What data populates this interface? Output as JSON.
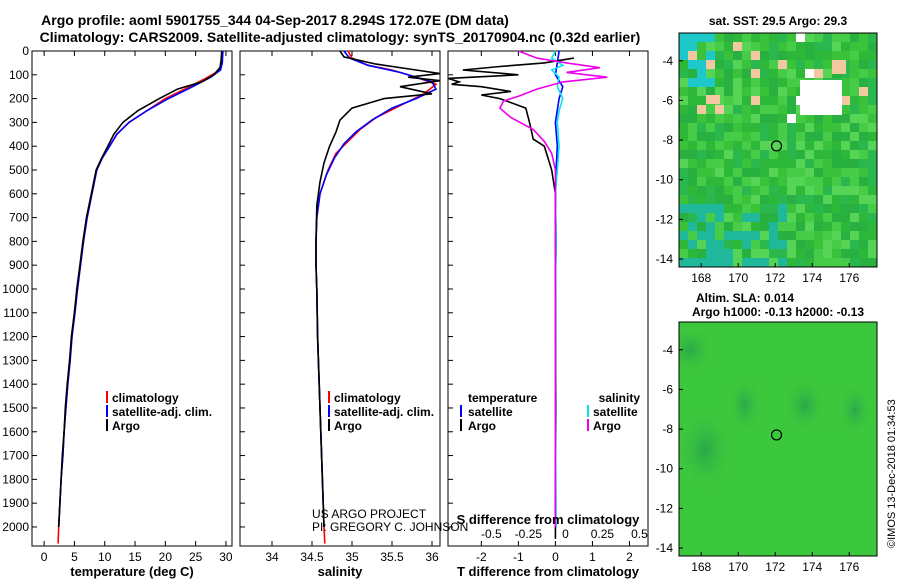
{
  "header": {
    "title_line1": "Argo profile: aoml 5901755_344 04-Sep-2017 8.294S 172.07E (DM data)",
    "title_line2": "Climatology: CARS2009. Satellite-adjusted climatology: synTS_20170904.nc (0.32d earlier)"
  },
  "credits": {
    "project": "US ARGO PROJECT",
    "pi": "PI: GREGORY C. JOHNSON",
    "stamp": "©IMOS 13-Dec-2018 01:34:53"
  },
  "colors": {
    "climatology": "#ff0000",
    "satellite": "#0000ff",
    "argo": "#000000",
    "cyan": "#00e5ee",
    "magenta": "#ee00ee"
  },
  "chart_data": [
    {
      "id": "temperature",
      "type": "line",
      "xlabel": "temperature (deg C)",
      "ylabel": "",
      "xlim": [
        -2,
        31
      ],
      "ylim": [
        2080,
        0
      ],
      "xticks": [
        0,
        5,
        10,
        15,
        20,
        25,
        30
      ],
      "yticks": [
        0,
        100,
        200,
        300,
        400,
        500,
        600,
        700,
        800,
        900,
        1000,
        1100,
        1200,
        1300,
        1400,
        1500,
        1600,
        1700,
        1800,
        1900,
        2000
      ],
      "legend": [
        "climatology",
        "satellite-adj. clim.",
        "Argo"
      ],
      "series": [
        {
          "name": "climatology",
          "color": "#ff0000",
          "points": [
            [
              29.4,
              0
            ],
            [
              29.3,
              50
            ],
            [
              29,
              80
            ],
            [
              27,
              110
            ],
            [
              24,
              150
            ],
            [
              20,
              200
            ],
            [
              17,
              250
            ],
            [
              14,
              300
            ],
            [
              12,
              350
            ],
            [
              10.8,
              400
            ],
            [
              9.5,
              450
            ],
            [
              8.6,
              500
            ],
            [
              7.8,
              600
            ],
            [
              7,
              700
            ],
            [
              6.5,
              800
            ],
            [
              6,
              900
            ],
            [
              5.5,
              1000
            ],
            [
              5,
              1100
            ],
            [
              4.6,
              1200
            ],
            [
              4.2,
              1300
            ],
            [
              3.9,
              1400
            ],
            [
              3.6,
              1500
            ],
            [
              3.3,
              1600
            ],
            [
              3.1,
              1700
            ],
            [
              2.8,
              1800
            ],
            [
              2.6,
              1900
            ],
            [
              2.4,
              2000
            ],
            [
              2.3,
              2070
            ]
          ]
        },
        {
          "name": "satellite-adj. clim.",
          "color": "#0000ff",
          "points": [
            [
              29.5,
              0
            ],
            [
              29.4,
              50
            ],
            [
              29.1,
              80
            ],
            [
              27.5,
              110
            ],
            [
              24.5,
              150
            ],
            [
              20.5,
              200
            ],
            [
              17,
              250
            ],
            [
              14,
              300
            ],
            [
              12,
              350
            ],
            [
              10.8,
              400
            ],
            [
              9.6,
              450
            ],
            [
              8.7,
              500
            ],
            [
              7.9,
              600
            ],
            [
              7.1,
              700
            ],
            [
              6.5,
              800
            ],
            [
              6,
              900
            ],
            [
              5.5,
              1000
            ],
            [
              5.1,
              1100
            ],
            [
              4.6,
              1200
            ],
            [
              4.3,
              1300
            ],
            [
              3.9,
              1400
            ],
            [
              3.6,
              1500
            ],
            [
              3.3,
              1600
            ],
            [
              3.1,
              1700
            ],
            [
              2.8,
              1800
            ],
            [
              2.6,
              1900
            ],
            [
              2.4,
              2000
            ]
          ]
        },
        {
          "name": "Argo",
          "color": "#000000",
          "points": [
            [
              29.3,
              0
            ],
            [
              29.2,
              40
            ],
            [
              29,
              70
            ],
            [
              28,
              100
            ],
            [
              26,
              130
            ],
            [
              22,
              160
            ],
            [
              19,
              200
            ],
            [
              15.5,
              250
            ],
            [
              13,
              300
            ],
            [
              11.5,
              350
            ],
            [
              10.5,
              400
            ],
            [
              9.5,
              450
            ],
            [
              8.6,
              500
            ],
            [
              7.8,
              600
            ],
            [
              7,
              700
            ],
            [
              6.4,
              800
            ],
            [
              5.9,
              900
            ],
            [
              5.4,
              1000
            ],
            [
              5,
              1100
            ],
            [
              4.5,
              1200
            ],
            [
              4.2,
              1300
            ],
            [
              3.8,
              1400
            ],
            [
              3.5,
              1500
            ],
            [
              3.3,
              1600
            ],
            [
              3,
              1700
            ],
            [
              2.8,
              1800
            ],
            [
              2.6,
              1900
            ],
            [
              2.4,
              2000
            ]
          ]
        }
      ]
    },
    {
      "id": "salinity",
      "type": "line",
      "xlabel": "salinity",
      "xlim": [
        33.6,
        36.1
      ],
      "ylim": [
        2080,
        0
      ],
      "xticks": [
        34,
        34.5,
        35,
        35.5,
        36
      ],
      "legend": [
        "climatology",
        "satellite-adj. clim.",
        "Argo"
      ],
      "series": [
        {
          "name": "climatology",
          "color": "#ff0000",
          "points": [
            [
              34.95,
              0
            ],
            [
              35,
              30
            ],
            [
              35.2,
              60
            ],
            [
              35.5,
              80
            ],
            [
              35.8,
              110
            ],
            [
              36.05,
              140
            ],
            [
              35.9,
              180
            ],
            [
              35.6,
              230
            ],
            [
              35.3,
              280
            ],
            [
              35.1,
              330
            ],
            [
              34.95,
              380
            ],
            [
              34.8,
              430
            ],
            [
              34.7,
              500
            ],
            [
              34.6,
              600
            ],
            [
              34.56,
              700
            ],
            [
              34.55,
              800
            ],
            [
              34.55,
              900
            ],
            [
              34.56,
              1000
            ],
            [
              34.57,
              1200
            ],
            [
              34.59,
              1400
            ],
            [
              34.61,
              1600
            ],
            [
              34.63,
              1800
            ],
            [
              34.65,
              2000
            ],
            [
              34.66,
              2070
            ]
          ]
        },
        {
          "name": "satellite-adj. clim.",
          "color": "#0000ff",
          "points": [
            [
              34.9,
              0
            ],
            [
              34.97,
              30
            ],
            [
              35.2,
              60
            ],
            [
              35.6,
              90
            ],
            [
              36,
              130
            ],
            [
              36.05,
              160
            ],
            [
              35.8,
              200
            ],
            [
              35.5,
              240
            ],
            [
              35.25,
              290
            ],
            [
              35.05,
              340
            ],
            [
              34.9,
              390
            ],
            [
              34.78,
              450
            ],
            [
              34.68,
              520
            ],
            [
              34.6,
              600
            ],
            [
              34.56,
              700
            ],
            [
              34.55,
              800
            ],
            [
              34.55,
              900
            ],
            [
              34.56,
              1000
            ],
            [
              34.57,
              1200
            ],
            [
              34.59,
              1400
            ],
            [
              34.61,
              1600
            ],
            [
              34.63,
              1800
            ],
            [
              34.65,
              2000
            ]
          ]
        },
        {
          "name": "Argo",
          "color": "#000000",
          "points": [
            [
              34.85,
              0
            ],
            [
              34.9,
              25
            ],
            [
              35.3,
              55
            ],
            [
              35.8,
              80
            ],
            [
              36.1,
              95
            ],
            [
              35.7,
              110
            ],
            [
              36.1,
              125
            ],
            [
              35.6,
              150
            ],
            [
              36,
              180
            ],
            [
              35.4,
              200
            ],
            [
              35,
              240
            ],
            [
              34.85,
              290
            ],
            [
              34.8,
              340
            ],
            [
              34.72,
              400
            ],
            [
              34.65,
              470
            ],
            [
              34.6,
              550
            ],
            [
              34.56,
              650
            ],
            [
              34.55,
              800
            ],
            [
              34.55,
              900
            ],
            [
              34.56,
              1000
            ],
            [
              34.57,
              1200
            ],
            [
              34.59,
              1400
            ],
            [
              34.61,
              1600
            ],
            [
              34.63,
              1800
            ],
            [
              34.65,
              2000
            ]
          ]
        }
      ]
    },
    {
      "id": "differences",
      "type": "line",
      "xlabel": "T difference from climatology",
      "xlabel_top": "S difference from climatology",
      "xlim": [
        -2.9,
        2.5
      ],
      "ylim": [
        2080,
        0
      ],
      "xticks": [
        -2,
        -1,
        0,
        1,
        2
      ],
      "xticks_s": [
        "-0.5",
        "-0.25",
        "0",
        "0.25",
        "0.5"
      ],
      "xticks_s_pos": [
        -2,
        -1,
        0,
        1,
        2
      ],
      "legend_left": {
        "title": "temperature",
        "items": [
          "satellite",
          "Argo"
        ]
      },
      "legend_right": {
        "title": "salinity",
        "items": [
          "satellite",
          "Argo"
        ]
      },
      "series": [
        {
          "name": "temperature satellite",
          "color": "#0000ff",
          "points": [
            [
              0.1,
              0
            ],
            [
              0.05,
              50
            ],
            [
              0,
              100
            ],
            [
              0.2,
              150
            ],
            [
              0.1,
              200
            ],
            [
              0,
              300
            ],
            [
              0.05,
              400
            ],
            [
              0.02,
              500
            ],
            [
              0,
              600
            ],
            [
              0.02,
              800
            ],
            [
              0,
              1000
            ],
            [
              0.01,
              1500
            ],
            [
              0,
              2000
            ]
          ]
        },
        {
          "name": "temperature Argo",
          "color": "#000000",
          "points": [
            [
              0.5,
              30
            ],
            [
              -0.3,
              50
            ],
            [
              -1.5,
              65
            ],
            [
              -2.5,
              80
            ],
            [
              -1,
              100
            ],
            [
              -2.9,
              115
            ],
            [
              -2.6,
              130
            ],
            [
              -2.8,
              140
            ],
            [
              -2,
              150
            ],
            [
              -1.2,
              170
            ],
            [
              -2,
              185
            ],
            [
              -1.5,
              200
            ],
            [
              -0.8,
              240
            ],
            [
              -0.7,
              300
            ],
            [
              -0.6,
              370
            ],
            [
              -0.3,
              400
            ],
            [
              -0.2,
              450
            ],
            [
              -0.1,
              500
            ],
            [
              0,
              600
            ],
            [
              0,
              1000
            ],
            [
              0.01,
              1500
            ],
            [
              0,
              2050
            ]
          ]
        },
        {
          "name": "salinity satellite",
          "color": "#00e5ee",
          "points": [
            [
              0,
              0
            ],
            [
              -0.1,
              30
            ],
            [
              0.2,
              60
            ],
            [
              -0.1,
              80
            ],
            [
              0.1,
              110
            ],
            [
              0.05,
              150
            ],
            [
              0.2,
              200
            ],
            [
              0.1,
              250
            ],
            [
              0.05,
              300
            ],
            [
              0.1,
              400
            ],
            [
              0.05,
              500
            ],
            [
              0,
              600
            ],
            [
              0.02,
              800
            ],
            [
              0,
              1000
            ],
            [
              0,
              1500
            ],
            [
              0.02,
              2000
            ]
          ]
        },
        {
          "name": "salinity Argo",
          "color": "#ee00ee",
          "points": [
            [
              -1,
              0
            ],
            [
              -0.5,
              30
            ],
            [
              0.3,
              50
            ],
            [
              1.2,
              70
            ],
            [
              0.3,
              90
            ],
            [
              1.4,
              110
            ],
            [
              0.2,
              130
            ],
            [
              -0.5,
              160
            ],
            [
              -1,
              190
            ],
            [
              -1.4,
              210
            ],
            [
              -1.5,
              240
            ],
            [
              -1.2,
              280
            ],
            [
              -0.6,
              330
            ],
            [
              -0.3,
              380
            ],
            [
              -0.1,
              430
            ],
            [
              0,
              500
            ],
            [
              0,
              600
            ],
            [
              0,
              1000
            ],
            [
              0,
              1500
            ],
            [
              0,
              2000
            ]
          ]
        }
      ]
    }
  ],
  "maps": [
    {
      "id": "sst-map",
      "title": "sat. SST: 29.5 Argo: 29.3",
      "xticks": [
        "168",
        "170",
        "172",
        "174",
        "176"
      ],
      "yticks": [
        "-4",
        "-6",
        "-8",
        "-10",
        "-12",
        "-14"
      ],
      "marker_lon": 172.07,
      "marker_lat": -8.294,
      "lon_range": [
        166.8,
        177.5
      ],
      "lat_range": [
        -2.6,
        -14.4
      ]
    },
    {
      "id": "sla-map",
      "title_line1": "Altim. SLA: 0.014",
      "title_line2": "Argo h1000: -0.13 h2000: -0.13",
      "xticks": [
        "168",
        "170",
        "172",
        "174",
        "176"
      ],
      "yticks": [
        "-4",
        "-6",
        "-8",
        "-10",
        "-12",
        "-14"
      ],
      "marker_lon": 172.07,
      "marker_lat": -8.294,
      "lon_range": [
        166.8,
        177.5
      ],
      "lat_range": [
        -2.6,
        -14.4
      ]
    }
  ]
}
